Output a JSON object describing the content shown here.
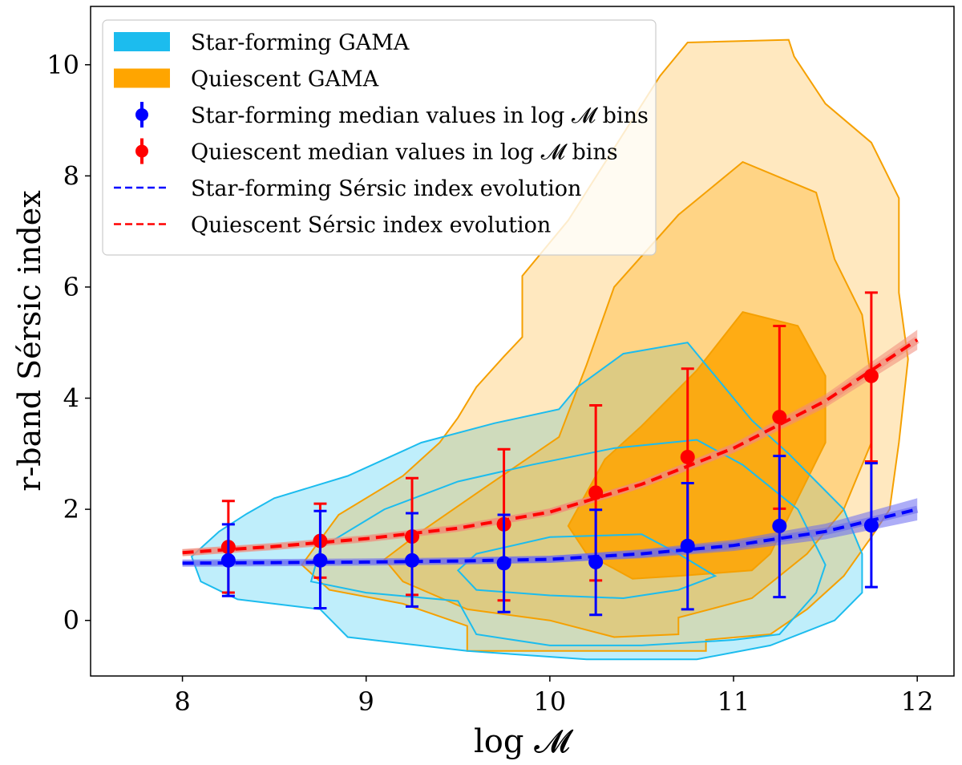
{
  "chart_data": {
    "type": "scatter",
    "xlabel": "log 𝓜",
    "ylabel": "r-band Sérsic index",
    "xlim": [
      7.5,
      12.2
    ],
    "ylim": [
      -1,
      11.05
    ],
    "xticks": [
      8,
      9,
      10,
      11,
      12
    ],
    "yticks": [
      0,
      2,
      4,
      6,
      8,
      10
    ],
    "grid": false,
    "legend_position": "top-left",
    "colors": {
      "sf_fill": "#bfeefb",
      "sf_line": "#1cbcee",
      "q_fill": "#ffa500",
      "q_line": "#f5a000",
      "sf_points": "#0000ff",
      "q_points": "#ff0000"
    },
    "legend": [
      {
        "label": "Star-forming GAMA",
        "kind": "patch",
        "color": "#1cbcee"
      },
      {
        "label": "Quiescent GAMA",
        "kind": "patch",
        "color": "#ffa500"
      },
      {
        "label": "Star-forming median values in log 𝓜 bins",
        "kind": "errorbar",
        "color": "#0000ff"
      },
      {
        "label": "Quiescent median values in log 𝓜 bins",
        "kind": "errorbar",
        "color": "#ff0000"
      },
      {
        "label": "Star-forming Sérsic index evolution",
        "kind": "dashed",
        "color": "#0000ff"
      },
      {
        "label": "Quiescent Sérsic index evolution",
        "kind": "dashed",
        "color": "#ff0000"
      }
    ],
    "series": [
      {
        "name": "Star-forming median values in log 𝓜 bins",
        "x": [
          8.25,
          8.75,
          9.25,
          9.75,
          10.25,
          10.75,
          11.25,
          11.75
        ],
        "y": [
          1.08,
          1.08,
          1.08,
          1.03,
          1.05,
          1.34,
          1.7,
          1.71
        ],
        "y_low": [
          0.44,
          0.22,
          0.25,
          0.15,
          0.1,
          0.2,
          0.42,
          0.6
        ],
        "y_high": [
          1.73,
          1.97,
          1.93,
          1.9,
          1.99,
          2.47,
          2.96,
          2.83
        ]
      },
      {
        "name": "Quiescent median values in log 𝓜 bins",
        "x": [
          8.25,
          8.75,
          9.25,
          9.75,
          10.25,
          10.75,
          11.25,
          11.75
        ],
        "y": [
          1.32,
          1.43,
          1.51,
          1.73,
          2.3,
          2.94,
          3.66,
          4.4
        ],
        "y_low": [
          0.5,
          0.77,
          0.46,
          0.36,
          0.72,
          1.4,
          2.01,
          2.86
        ],
        "y_high": [
          2.15,
          2.1,
          2.56,
          3.08,
          3.87,
          4.53,
          5.3,
          5.9
        ]
      },
      {
        "name": "Star-forming Sérsic index evolution",
        "x": [
          8,
          8.5,
          9,
          9.5,
          10,
          10.5,
          11,
          11.5,
          12
        ],
        "y": [
          1.03,
          1.04,
          1.05,
          1.07,
          1.1,
          1.2,
          1.35,
          1.6,
          2.0
        ],
        "band": [
          0.04,
          0.04,
          0.04,
          0.05,
          0.06,
          0.08,
          0.1,
          0.14,
          0.2
        ]
      },
      {
        "name": "Quiescent Sérsic index evolution",
        "x": [
          8,
          8.5,
          9,
          9.5,
          10,
          10.5,
          11,
          11.5,
          12
        ],
        "y": [
          1.22,
          1.33,
          1.47,
          1.66,
          1.95,
          2.45,
          3.1,
          3.95,
          5.05
        ],
        "band": [
          0.06,
          0.05,
          0.05,
          0.05,
          0.06,
          0.07,
          0.09,
          0.12,
          0.18
        ]
      }
    ],
    "contours": {
      "quiescent": [
        [
          [
            8.65,
            1.0
          ],
          [
            8.85,
            1.9
          ],
          [
            9.2,
            2.6
          ],
          [
            9.4,
            3.2
          ],
          [
            9.5,
            3.65
          ],
          [
            9.6,
            4.2
          ],
          [
            9.75,
            4.75
          ],
          [
            9.85,
            5.1
          ],
          [
            9.85,
            6.2
          ],
          [
            10.1,
            7.2
          ],
          [
            10.35,
            8.5
          ],
          [
            10.6,
            9.8
          ],
          [
            10.75,
            10.4
          ],
          [
            11.3,
            10.45
          ],
          [
            11.33,
            10.15
          ],
          [
            11.5,
            9.3
          ],
          [
            11.75,
            8.6
          ],
          [
            11.9,
            7.6
          ],
          [
            11.9,
            5.9
          ],
          [
            11.95,
            4.7
          ],
          [
            11.9,
            3.2
          ],
          [
            11.85,
            2.0
          ],
          [
            11.75,
            1.5
          ],
          [
            11.6,
            0.8
          ],
          [
            11.4,
            0.2
          ],
          [
            11.2,
            -0.25
          ],
          [
            10.85,
            -0.35
          ],
          [
            10.85,
            -0.55
          ],
          [
            9.55,
            -0.55
          ],
          [
            9.55,
            -0.1
          ],
          [
            9.2,
            0.3
          ],
          [
            8.8,
            0.55
          ],
          [
            8.65,
            1.0
          ]
        ],
        [
          [
            9.1,
            1.1
          ],
          [
            9.3,
            1.6
          ],
          [
            9.65,
            2.4
          ],
          [
            10.05,
            3.3
          ],
          [
            10.2,
            4.6
          ],
          [
            10.35,
            6.0
          ],
          [
            10.7,
            7.3
          ],
          [
            11.05,
            8.25
          ],
          [
            11.45,
            7.7
          ],
          [
            11.55,
            6.5
          ],
          [
            11.7,
            5.5
          ],
          [
            11.75,
            4.3
          ],
          [
            11.75,
            3.2
          ],
          [
            11.6,
            2.0
          ],
          [
            11.4,
            1.2
          ],
          [
            11.1,
            0.4
          ],
          [
            10.7,
            0.05
          ],
          [
            10.7,
            -0.25
          ],
          [
            10.35,
            -0.3
          ],
          [
            10.0,
            0.0
          ],
          [
            9.55,
            0.2
          ],
          [
            9.2,
            0.7
          ],
          [
            9.1,
            1.1
          ]
        ],
        [
          [
            10.1,
            1.7
          ],
          [
            10.3,
            2.9
          ],
          [
            10.5,
            3.5
          ],
          [
            10.8,
            4.5
          ],
          [
            11.05,
            5.55
          ],
          [
            11.35,
            5.3
          ],
          [
            11.5,
            4.4
          ],
          [
            11.5,
            3.2
          ],
          [
            11.35,
            2.2
          ],
          [
            11.2,
            1.2
          ],
          [
            11.1,
            0.9
          ],
          [
            10.7,
            0.8
          ],
          [
            10.45,
            0.75
          ],
          [
            10.2,
            1.2
          ],
          [
            10.1,
            1.7
          ]
        ]
      ],
      "star_forming": [
        [
          [
            8.05,
            1.15
          ],
          [
            8.1,
            0.7
          ],
          [
            8.3,
            0.38
          ],
          [
            8.75,
            0.2
          ],
          [
            8.9,
            -0.3
          ],
          [
            9.55,
            -0.55
          ],
          [
            10.2,
            -0.7
          ],
          [
            10.8,
            -0.7
          ],
          [
            11.2,
            -0.45
          ],
          [
            11.55,
            0.0
          ],
          [
            11.7,
            0.5
          ],
          [
            11.7,
            1.2
          ],
          [
            11.6,
            2.0
          ],
          [
            11.3,
            3.0
          ],
          [
            11.1,
            3.6
          ],
          [
            10.9,
            4.4
          ],
          [
            10.75,
            5.0
          ],
          [
            10.4,
            4.8
          ],
          [
            10.15,
            4.2
          ],
          [
            10.05,
            3.8
          ],
          [
            9.7,
            3.55
          ],
          [
            9.3,
            3.2
          ],
          [
            8.9,
            2.6
          ],
          [
            8.5,
            2.2
          ],
          [
            8.35,
            1.92
          ],
          [
            8.2,
            1.6
          ],
          [
            8.05,
            1.15
          ]
        ],
        [
          [
            8.7,
            0.7
          ],
          [
            9.0,
            0.5
          ],
          [
            9.5,
            0.35
          ],
          [
            9.6,
            -0.25
          ],
          [
            10.0,
            -0.45
          ],
          [
            10.5,
            -0.45
          ],
          [
            11.0,
            -0.35
          ],
          [
            11.25,
            -0.25
          ],
          [
            11.45,
            0.5
          ],
          [
            11.5,
            1.0
          ],
          [
            11.35,
            2.0
          ],
          [
            11.05,
            2.8
          ],
          [
            10.8,
            3.25
          ],
          [
            10.35,
            3.1
          ],
          [
            9.9,
            2.8
          ],
          [
            9.5,
            2.5
          ],
          [
            9.1,
            2.0
          ],
          [
            8.75,
            1.3
          ],
          [
            8.7,
            0.7
          ]
        ],
        [
          [
            9.5,
            0.9
          ],
          [
            9.6,
            0.55
          ],
          [
            10.0,
            0.45
          ],
          [
            10.4,
            0.4
          ],
          [
            10.7,
            0.55
          ],
          [
            10.9,
            0.8
          ],
          [
            10.7,
            1.2
          ],
          [
            10.5,
            1.55
          ],
          [
            10.0,
            1.5
          ],
          [
            9.6,
            1.2
          ],
          [
            9.5,
            0.9
          ]
        ]
      ]
    }
  }
}
